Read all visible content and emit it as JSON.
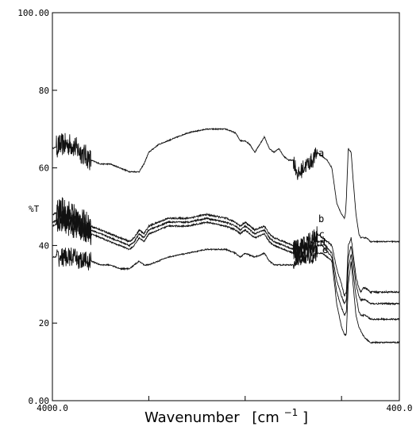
{
  "chart_data": {
    "type": "line",
    "xlabel": "Wavenumber",
    "xlabel_unit": "[cm",
    "xlabel_unit_sup": "−1",
    "xlabel_unit_close": "]",
    "ylabel": "%T",
    "xlim": [
      4000,
      400
    ],
    "ylim": [
      0,
      100
    ],
    "x_tick_labels": [
      {
        "value": 4000,
        "label": "4000.0"
      },
      {
        "value": 400,
        "label": "400.0"
      }
    ],
    "x_minor_ticks": [
      3000,
      2000,
      1000
    ],
    "y_tick_labels": [
      {
        "value": 100,
        "label": "100.00"
      },
      {
        "value": 80,
        "label": "80"
      },
      {
        "value": 60,
        "label": "60"
      },
      {
        "value": 40,
        "label": "40"
      },
      {
        "value": 20,
        "label": "20"
      },
      {
        "value": 0,
        "label": "0.00"
      }
    ],
    "series": [
      {
        "name": "a",
        "noise": 0.9,
        "amp": 6,
        "points": [
          [
            4000,
            65
          ],
          [
            3900,
            66
          ],
          [
            3800,
            66
          ],
          [
            3700,
            64
          ],
          [
            3600,
            62
          ],
          [
            3500,
            61
          ],
          [
            3400,
            61
          ],
          [
            3300,
            60
          ],
          [
            3200,
            59
          ],
          [
            3100,
            59
          ],
          [
            3050,
            61
          ],
          [
            3000,
            64
          ],
          [
            2900,
            66
          ],
          [
            2800,
            67
          ],
          [
            2600,
            69
          ],
          [
            2400,
            70
          ],
          [
            2200,
            70
          ],
          [
            2100,
            69
          ],
          [
            2050,
            67
          ],
          [
            2000,
            67
          ],
          [
            1950,
            66
          ],
          [
            1900,
            64
          ],
          [
            1850,
            66
          ],
          [
            1800,
            68
          ],
          [
            1750,
            65
          ],
          [
            1700,
            64
          ],
          [
            1650,
            65
          ],
          [
            1600,
            63
          ],
          [
            1550,
            62
          ],
          [
            1500,
            62
          ],
          [
            1450,
            58
          ],
          [
            1400,
            60
          ],
          [
            1350,
            61
          ],
          [
            1300,
            62
          ],
          [
            1250,
            64
          ],
          [
            1200,
            63
          ],
          [
            1150,
            62
          ],
          [
            1100,
            60
          ],
          [
            1050,
            51
          ],
          [
            1000,
            48
          ],
          [
            970,
            47
          ],
          [
            960,
            48
          ],
          [
            950,
            52
          ],
          [
            930,
            65
          ],
          [
            900,
            64
          ],
          [
            880,
            57
          ],
          [
            850,
            48
          ],
          [
            820,
            43
          ],
          [
            800,
            42
          ],
          [
            770,
            42
          ],
          [
            740,
            42
          ],
          [
            700,
            41
          ]
        ],
        "label": {
          "text": "a",
          "x": 1240,
          "y": 63
        }
      },
      {
        "name": "b",
        "noise": 1.5,
        "amp": 7,
        "points": [
          [
            4000,
            48
          ],
          [
            3900,
            49
          ],
          [
            3800,
            48
          ],
          [
            3700,
            46
          ],
          [
            3600,
            45
          ],
          [
            3500,
            44
          ],
          [
            3400,
            43
          ],
          [
            3300,
            42
          ],
          [
            3200,
            41
          ],
          [
            3150,
            42
          ],
          [
            3100,
            44
          ],
          [
            3050,
            43
          ],
          [
            3000,
            45
          ],
          [
            2900,
            46
          ],
          [
            2800,
            47
          ],
          [
            2600,
            47
          ],
          [
            2400,
            48
          ],
          [
            2200,
            47
          ],
          [
            2100,
            46
          ],
          [
            2050,
            45
          ],
          [
            2000,
            46
          ],
          [
            1900,
            44
          ],
          [
            1800,
            45
          ],
          [
            1750,
            43
          ],
          [
            1700,
            42
          ],
          [
            1600,
            41
          ],
          [
            1500,
            40
          ],
          [
            1450,
            39
          ],
          [
            1400,
            40
          ],
          [
            1350,
            41
          ],
          [
            1300,
            42
          ],
          [
            1250,
            43
          ],
          [
            1200,
            42
          ],
          [
            1100,
            40
          ],
          [
            1050,
            34
          ],
          [
            1000,
            30
          ],
          [
            970,
            27
          ],
          [
            950,
            28
          ],
          [
            930,
            40
          ],
          [
            900,
            42
          ],
          [
            880,
            38
          ],
          [
            850,
            32
          ],
          [
            820,
            29
          ],
          [
            800,
            28
          ],
          [
            780,
            29
          ],
          [
            750,
            29
          ],
          [
            700,
            28
          ]
        ],
        "label": {
          "text": "b",
          "x": 1240,
          "y": 46
        }
      },
      {
        "name": "c",
        "noise": 1.3,
        "amp": 6,
        "points": [
          [
            4000,
            46
          ],
          [
            3900,
            47
          ],
          [
            3800,
            46
          ],
          [
            3700,
            45
          ],
          [
            3600,
            44
          ],
          [
            3500,
            43
          ],
          [
            3400,
            42
          ],
          [
            3300,
            41
          ],
          [
            3200,
            40
          ],
          [
            3150,
            41
          ],
          [
            3100,
            43
          ],
          [
            3050,
            42
          ],
          [
            3000,
            44
          ],
          [
            2900,
            45
          ],
          [
            2800,
            46
          ],
          [
            2600,
            46
          ],
          [
            2400,
            47
          ],
          [
            2200,
            46
          ],
          [
            2100,
            45
          ],
          [
            2050,
            44
          ],
          [
            2000,
            45
          ],
          [
            1900,
            43
          ],
          [
            1800,
            44
          ],
          [
            1750,
            42
          ],
          [
            1700,
            41
          ],
          [
            1600,
            40
          ],
          [
            1500,
            39
          ],
          [
            1450,
            38
          ],
          [
            1400,
            39
          ],
          [
            1350,
            40
          ],
          [
            1300,
            40
          ],
          [
            1250,
            41
          ],
          [
            1200,
            41
          ],
          [
            1100,
            38
          ],
          [
            1050,
            31
          ],
          [
            1000,
            27
          ],
          [
            970,
            25
          ],
          [
            950,
            26
          ],
          [
            930,
            37
          ],
          [
            900,
            40
          ],
          [
            880,
            36
          ],
          [
            850,
            30
          ],
          [
            820,
            27
          ],
          [
            800,
            26
          ],
          [
            780,
            26
          ],
          [
            750,
            26
          ],
          [
            700,
            25
          ]
        ],
        "label": {
          "text": "c",
          "x": 1235,
          "y": 42
        }
      },
      {
        "name": "d",
        "noise": 1.2,
        "amp": 6,
        "points": [
          [
            4000,
            45
          ],
          [
            3900,
            46
          ],
          [
            3800,
            45
          ],
          [
            3700,
            44
          ],
          [
            3600,
            43
          ],
          [
            3500,
            42
          ],
          [
            3400,
            41
          ],
          [
            3300,
            40
          ],
          [
            3200,
            39
          ],
          [
            3150,
            40
          ],
          [
            3100,
            42
          ],
          [
            3050,
            41
          ],
          [
            3000,
            43
          ],
          [
            2900,
            44
          ],
          [
            2800,
            45
          ],
          [
            2600,
            45
          ],
          [
            2400,
            46
          ],
          [
            2200,
            45
          ],
          [
            2100,
            44
          ],
          [
            2050,
            43
          ],
          [
            2000,
            44
          ],
          [
            1900,
            42
          ],
          [
            1800,
            43
          ],
          [
            1750,
            41
          ],
          [
            1700,
            40
          ],
          [
            1600,
            39
          ],
          [
            1500,
            38
          ],
          [
            1450,
            37
          ],
          [
            1400,
            38
          ],
          [
            1350,
            39
          ],
          [
            1300,
            39
          ],
          [
            1250,
            40
          ],
          [
            1200,
            40
          ],
          [
            1100,
            37
          ],
          [
            1050,
            28
          ],
          [
            1000,
            24
          ],
          [
            970,
            22
          ],
          [
            950,
            23
          ],
          [
            930,
            34
          ],
          [
            900,
            38
          ],
          [
            880,
            33
          ],
          [
            850,
            27
          ],
          [
            820,
            23
          ],
          [
            800,
            22
          ],
          [
            780,
            22
          ],
          [
            750,
            22
          ],
          [
            700,
            21
          ]
        ],
        "label": {
          "text": "d",
          "x": 1225,
          "y": 40
        }
      },
      {
        "name": "e",
        "noise": 1.0,
        "amp": 5,
        "points": [
          [
            4000,
            37
          ],
          [
            3900,
            37
          ],
          [
            3800,
            37
          ],
          [
            3700,
            36
          ],
          [
            3600,
            36
          ],
          [
            3500,
            35
          ],
          [
            3400,
            35
          ],
          [
            3300,
            34
          ],
          [
            3200,
            34
          ],
          [
            3150,
            35
          ],
          [
            3100,
            36
          ],
          [
            3050,
            35
          ],
          [
            3000,
            35
          ],
          [
            2900,
            36
          ],
          [
            2800,
            37
          ],
          [
            2600,
            38
          ],
          [
            2400,
            39
          ],
          [
            2200,
            39
          ],
          [
            2100,
            38
          ],
          [
            2050,
            37
          ],
          [
            2000,
            38
          ],
          [
            1900,
            37
          ],
          [
            1800,
            38
          ],
          [
            1750,
            36
          ],
          [
            1700,
            35
          ],
          [
            1600,
            35
          ],
          [
            1500,
            35
          ],
          [
            1450,
            36
          ],
          [
            1400,
            37
          ],
          [
            1350,
            37
          ],
          [
            1300,
            37
          ],
          [
            1250,
            38
          ],
          [
            1200,
            38
          ],
          [
            1100,
            36
          ],
          [
            1050,
            25
          ],
          [
            1000,
            19
          ],
          [
            970,
            17
          ],
          [
            950,
            17
          ],
          [
            930,
            30
          ],
          [
            900,
            36
          ],
          [
            880,
            30
          ],
          [
            850,
            22
          ],
          [
            820,
            19
          ],
          [
            800,
            18
          ],
          [
            780,
            17
          ],
          [
            750,
            16
          ],
          [
            700,
            15
          ]
        ],
        "label": {
          "text": "e",
          "x": 1200,
          "y": 38
        }
      }
    ]
  }
}
